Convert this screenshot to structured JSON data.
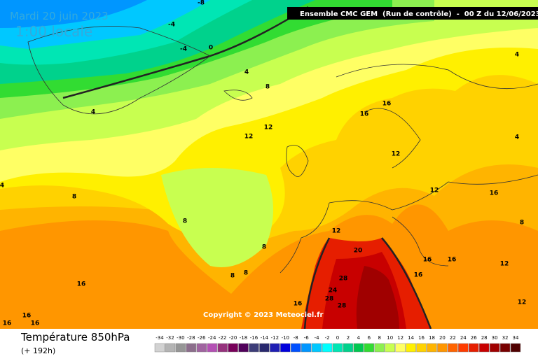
{
  "header": {
    "date": "Mardi 20 juin 2023",
    "time": "1:00 locale",
    "model": "Ensemble CMC GEM  (Run de contrôle)  -  00 Z du 12/06/2023"
  },
  "footer": {
    "title": "Température 850hPa",
    "lead": "(+ 192h)",
    "copyright": "Copyright © 2023 Meteociel.fr"
  },
  "colorbar": {
    "levels": [
      -34,
      -32,
      -30,
      -28,
      -26,
      -24,
      -22,
      -20,
      -18,
      -16,
      -14,
      -12,
      -10,
      -8,
      -6,
      -4,
      -2,
      0,
      2,
      4,
      6,
      8,
      10,
      12,
      14,
      16,
      18,
      20,
      22,
      24,
      26,
      28,
      30,
      32,
      34
    ],
    "colors": [
      "#d2d2d2",
      "#b4b4b4",
      "#969696",
      "#8c6e8c",
      "#a064a0",
      "#b450b4",
      "#96327d",
      "#78005a",
      "#50005a",
      "#3c3c78",
      "#28286e",
      "#1e1eb4",
      "#0000dc",
      "#0050ff",
      "#0096ff",
      "#00c8ff",
      "#00ffff",
      "#00e6b4",
      "#00d28c",
      "#00c850",
      "#32dc32",
      "#8cf050",
      "#c8ff50",
      "#ffff64",
      "#fff000",
      "#ffd200",
      "#ffb400",
      "#ff9600",
      "#ff6400",
      "#ff3c00",
      "#e61e00",
      "#c80000",
      "#a00000",
      "#780000",
      "#500000"
    ]
  },
  "contour_labels": [
    -8,
    -4,
    -4,
    0,
    4,
    4,
    8,
    12,
    12,
    16,
    16,
    12,
    12,
    16,
    4,
    4,
    8,
    4,
    8,
    8,
    8,
    8,
    8,
    12,
    20,
    28,
    24,
    28,
    28,
    16,
    16,
    16,
    16,
    12,
    12,
    16,
    16,
    16,
    16
  ]
}
